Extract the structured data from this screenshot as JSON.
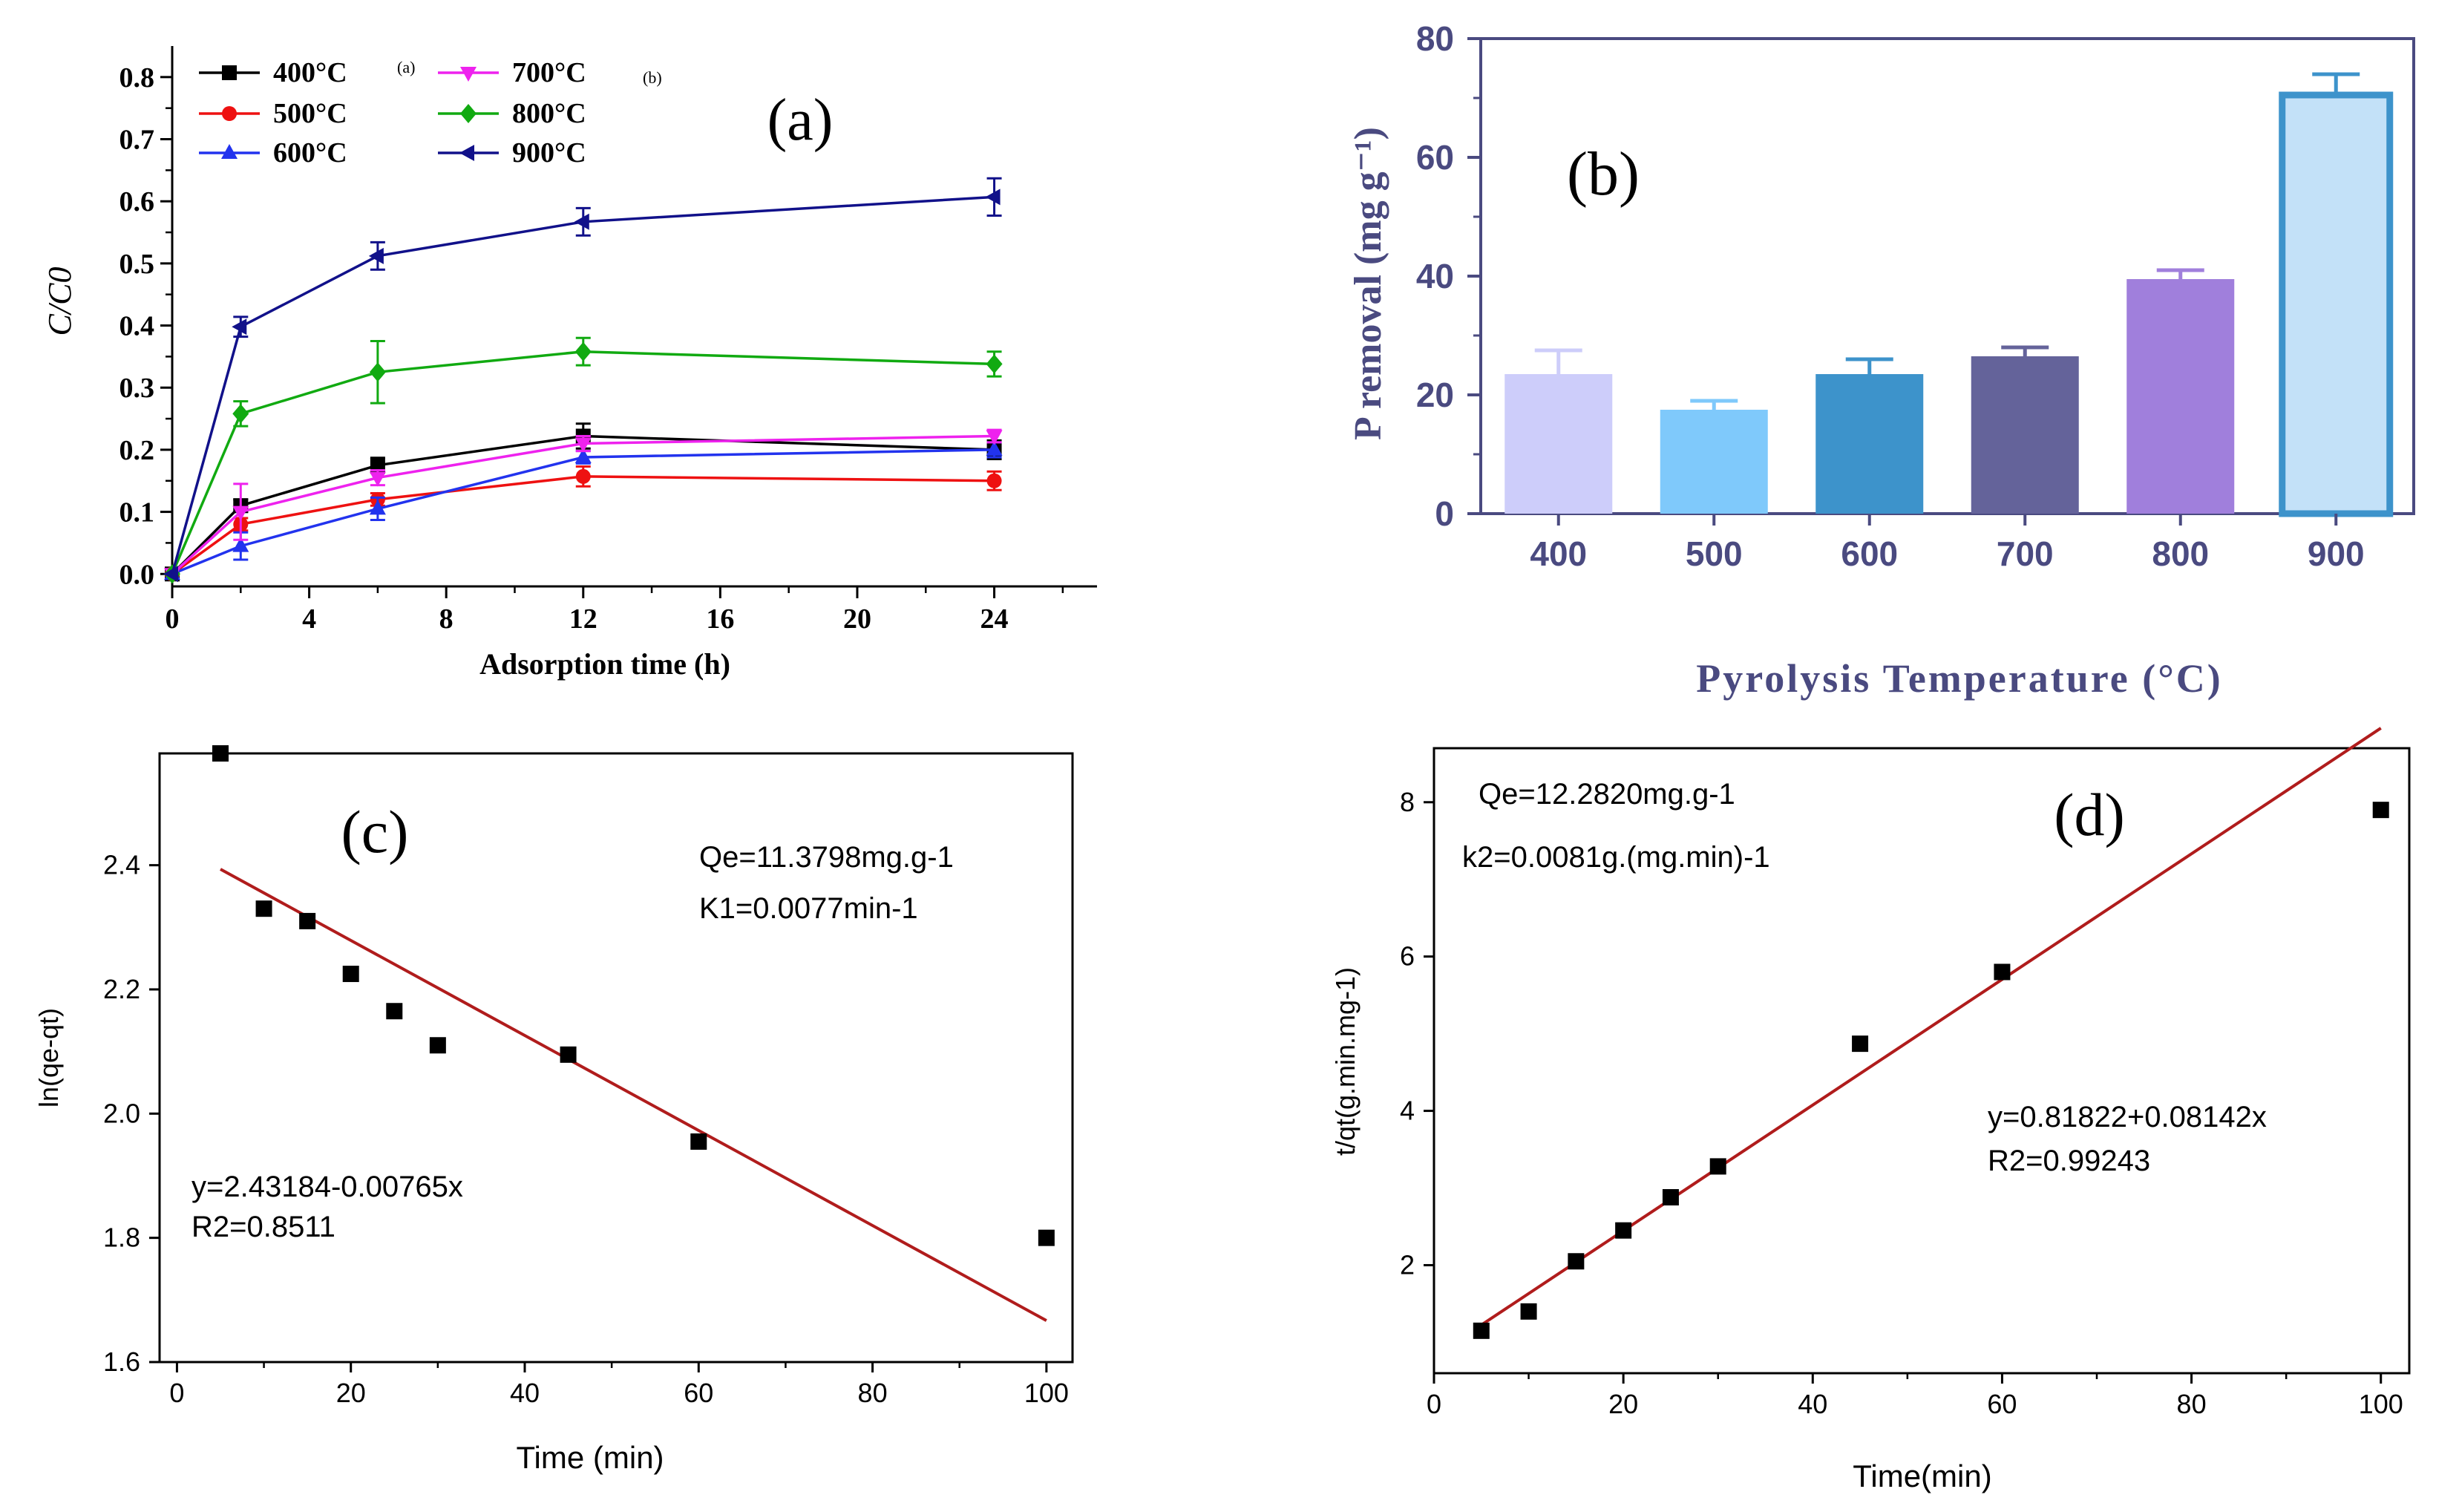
{
  "chart_data": [
    {
      "id": "a",
      "type": "line",
      "panel_label": "(a)",
      "xlabel": "Adsorption time (h)",
      "ylabel": "C/C0",
      "xlim": [
        0,
        27
      ],
      "ylim": [
        -0.02,
        0.85
      ],
      "xticks": [
        "0",
        "4",
        "8",
        "12",
        "16",
        "20",
        "24"
      ],
      "xtick_values": [
        0,
        4,
        8,
        12,
        16,
        20,
        24
      ],
      "yticks": [
        "0.0",
        "0.1",
        "0.2",
        "0.3",
        "0.4",
        "0.5",
        "0.6",
        "0.7",
        "0.8"
      ],
      "ytick_values": [
        0.0,
        0.1,
        0.2,
        0.3,
        0.4,
        0.5,
        0.6,
        0.7,
        0.8
      ],
      "x": [
        0,
        2,
        6,
        12,
        24
      ],
      "legend_note_a": "(a)",
      "legend_note_b": "(b)",
      "series": [
        {
          "name": "400°C",
          "color": "#000000",
          "marker": "square",
          "values": [
            0,
            0.11,
            0.175,
            0.222,
            0.2
          ],
          "errors": [
            0,
            0.01,
            0.012,
            0.02,
            0.015
          ]
        },
        {
          "name": "500°C",
          "color": "#ee1111",
          "marker": "circle",
          "values": [
            0,
            0.08,
            0.12,
            0.157,
            0.15
          ],
          "errors": [
            0,
            0.01,
            0.01,
            0.016,
            0.015
          ]
        },
        {
          "name": "600°C",
          "color": "#2233ee",
          "marker": "triangle-up",
          "values": [
            0,
            0.045,
            0.105,
            0.188,
            0.2
          ],
          "errors": [
            0,
            0.022,
            0.018,
            0.01,
            0.012
          ]
        },
        {
          "name": "700°C",
          "color": "#ee22ee",
          "marker": "triangle-down",
          "values": [
            0,
            0.1,
            0.155,
            0.21,
            0.222
          ],
          "errors": [
            0,
            0.045,
            0.012,
            0.012,
            0.01
          ]
        },
        {
          "name": "800°C",
          "color": "#11aa11",
          "marker": "diamond",
          "values": [
            0,
            0.258,
            0.325,
            0.358,
            0.338
          ],
          "errors": [
            0,
            0.02,
            0.05,
            0.022,
            0.02
          ]
        },
        {
          "name": "900°C",
          "color": "#11118a",
          "marker": "triangle-left",
          "values": [
            0,
            0.398,
            0.512,
            0.567,
            0.607
          ],
          "errors": [
            0,
            0.016,
            0.022,
            0.022,
            0.03
          ]
        }
      ]
    },
    {
      "id": "b",
      "type": "bar",
      "panel_label": "(b)",
      "xlabel": "Pyrolysis Temperature (°C)",
      "ylabel": "P removal (mg g⁻¹)",
      "ylim": [
        0,
        80
      ],
      "yticks": [
        "0",
        "20",
        "40",
        "60",
        "80"
      ],
      "ytick_values": [
        0,
        20,
        40,
        60,
        80
      ],
      "categories": [
        "400",
        "500",
        "600",
        "700",
        "800",
        "900"
      ],
      "values": [
        23.5,
        17.5,
        23.5,
        26.5,
        39.5,
        70.5
      ],
      "errors": [
        4.0,
        1.5,
        2.5,
        1.5,
        1.5,
        3.5
      ],
      "fill_colors": [
        "#cdcdfa",
        "#7fc9fb",
        "#3d93cb",
        "#64639a",
        "#a07fdc",
        "#c3e1f8"
      ],
      "edge_colors": [
        "#cdcdfa",
        "#7fc9fb",
        "#3d93cb",
        "#64639a",
        "#a07fdc",
        "#3d93cb"
      ]
    },
    {
      "id": "c",
      "type": "scatter",
      "panel_label": "(c)",
      "xlabel": "Time (min)",
      "ylabel": "ln(qe-qt)",
      "xlim": [
        -2,
        103
      ],
      "ylim": [
        1.6,
        2.58
      ],
      "xticks": [
        "0",
        "20",
        "40",
        "60",
        "80",
        "100"
      ],
      "xtick_values": [
        0,
        20,
        40,
        60,
        80,
        100
      ],
      "yticks": [
        "1.6",
        "1.8",
        "2.0",
        "2.2",
        "2.4"
      ],
      "ytick_values": [
        1.6,
        1.8,
        2.0,
        2.2,
        2.4
      ],
      "x": [
        5,
        10,
        15,
        20,
        25,
        30,
        45,
        60,
        100
      ],
      "y": [
        2.58,
        2.33,
        2.31,
        2.225,
        2.165,
        2.11,
        2.095,
        1.955,
        1.8
      ],
      "fit": {
        "intercept": 2.43184,
        "slope": -0.00765,
        "x_range": [
          5,
          100
        ],
        "color": "#b01c1c"
      },
      "annotations": {
        "qe": "Qe=11.3798mg.g-1",
        "k1": "K1=0.0077min-1",
        "equation": "y=2.43184-0.00765x",
        "r2": "R2=0.8511"
      }
    },
    {
      "id": "d",
      "type": "scatter",
      "panel_label": "(d)",
      "xlabel": "Time(min)",
      "ylabel": "t/qt(g.min.mg-1)",
      "xlim": [
        0,
        103
      ],
      "ylim": [
        0.6,
        8.7
      ],
      "xticks": [
        "0",
        "20",
        "40",
        "60",
        "80",
        "100"
      ],
      "xtick_values": [
        0,
        20,
        40,
        60,
        80,
        100
      ],
      "yticks": [
        "2",
        "4",
        "6",
        "8"
      ],
      "ytick_values": [
        2,
        4,
        6,
        8
      ],
      "x": [
        5,
        10,
        15,
        20,
        25,
        30,
        45,
        60,
        100
      ],
      "y": [
        1.15,
        1.4,
        2.05,
        2.45,
        2.88,
        3.28,
        4.87,
        5.8,
        7.9
      ],
      "fit": {
        "intercept": 0.81822,
        "slope": 0.08142,
        "x_range": [
          5,
          100
        ],
        "color": "#b01c1c"
      },
      "annotations": {
        "qe": "Qe=12.2820mg.g-1",
        "k2": "k2=0.0081g.(mg.min)-1",
        "equation": "y=0.81822+0.08142x",
        "r2": "R2=0.99243"
      }
    }
  ]
}
